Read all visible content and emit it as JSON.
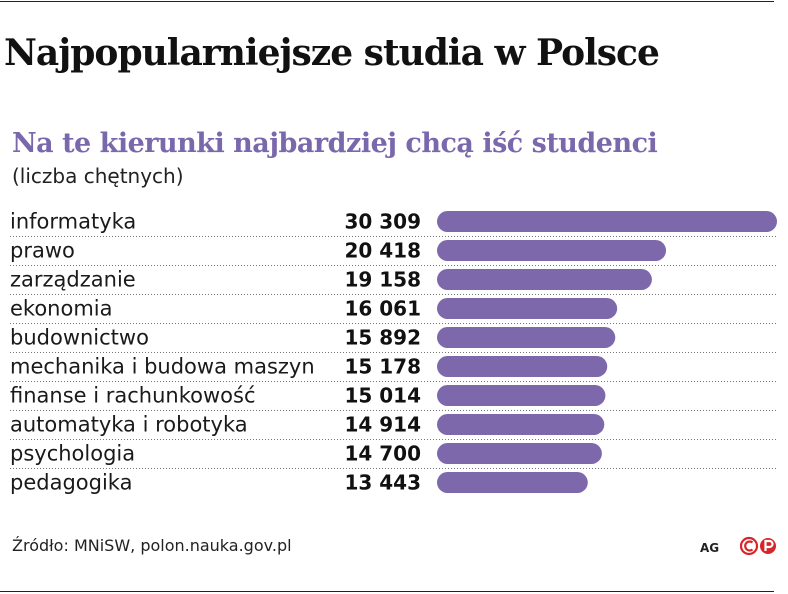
{
  "header": {
    "title": "Najpopularniejsze studia w Polsce",
    "subtitle": "Na te kierunki najbardziej chcą iść studenci",
    "unit": "(liczba chętnych)"
  },
  "footer": {
    "source": "Źródło: MNiSW, polon.nauka.gov.pl",
    "agency": "AG",
    "logo": "cp-logo-icon"
  },
  "colors": {
    "bar": "#7d68ac",
    "subtitle": "#7a68ad",
    "logo": "#d7262b"
  },
  "chart_data": {
    "type": "bar",
    "orientation": "horizontal",
    "title": "Najpopularniejsze studia w Polsce",
    "subtitle": "Na te kierunki najbardziej chcą iść studenci",
    "categories": [
      "informatyka",
      "prawo",
      "zarządzanie",
      "ekonomia",
      "budownictwo",
      "mechanika i budowa maszyn",
      "finanse i rachunkowość",
      "automatyka i robotyka",
      "psychologia",
      "pedagogika"
    ],
    "values": [
      30309,
      20418,
      19158,
      16061,
      15892,
      15178,
      15014,
      14914,
      14700,
      13443
    ],
    "value_labels": [
      "30 309",
      "20 418",
      "19 158",
      "16 061",
      "15 892",
      "15 178",
      "15 014",
      "14 914",
      "14 700",
      "13 443"
    ],
    "xlim": [
      0,
      30309
    ],
    "grid": false,
    "legend": "none"
  }
}
